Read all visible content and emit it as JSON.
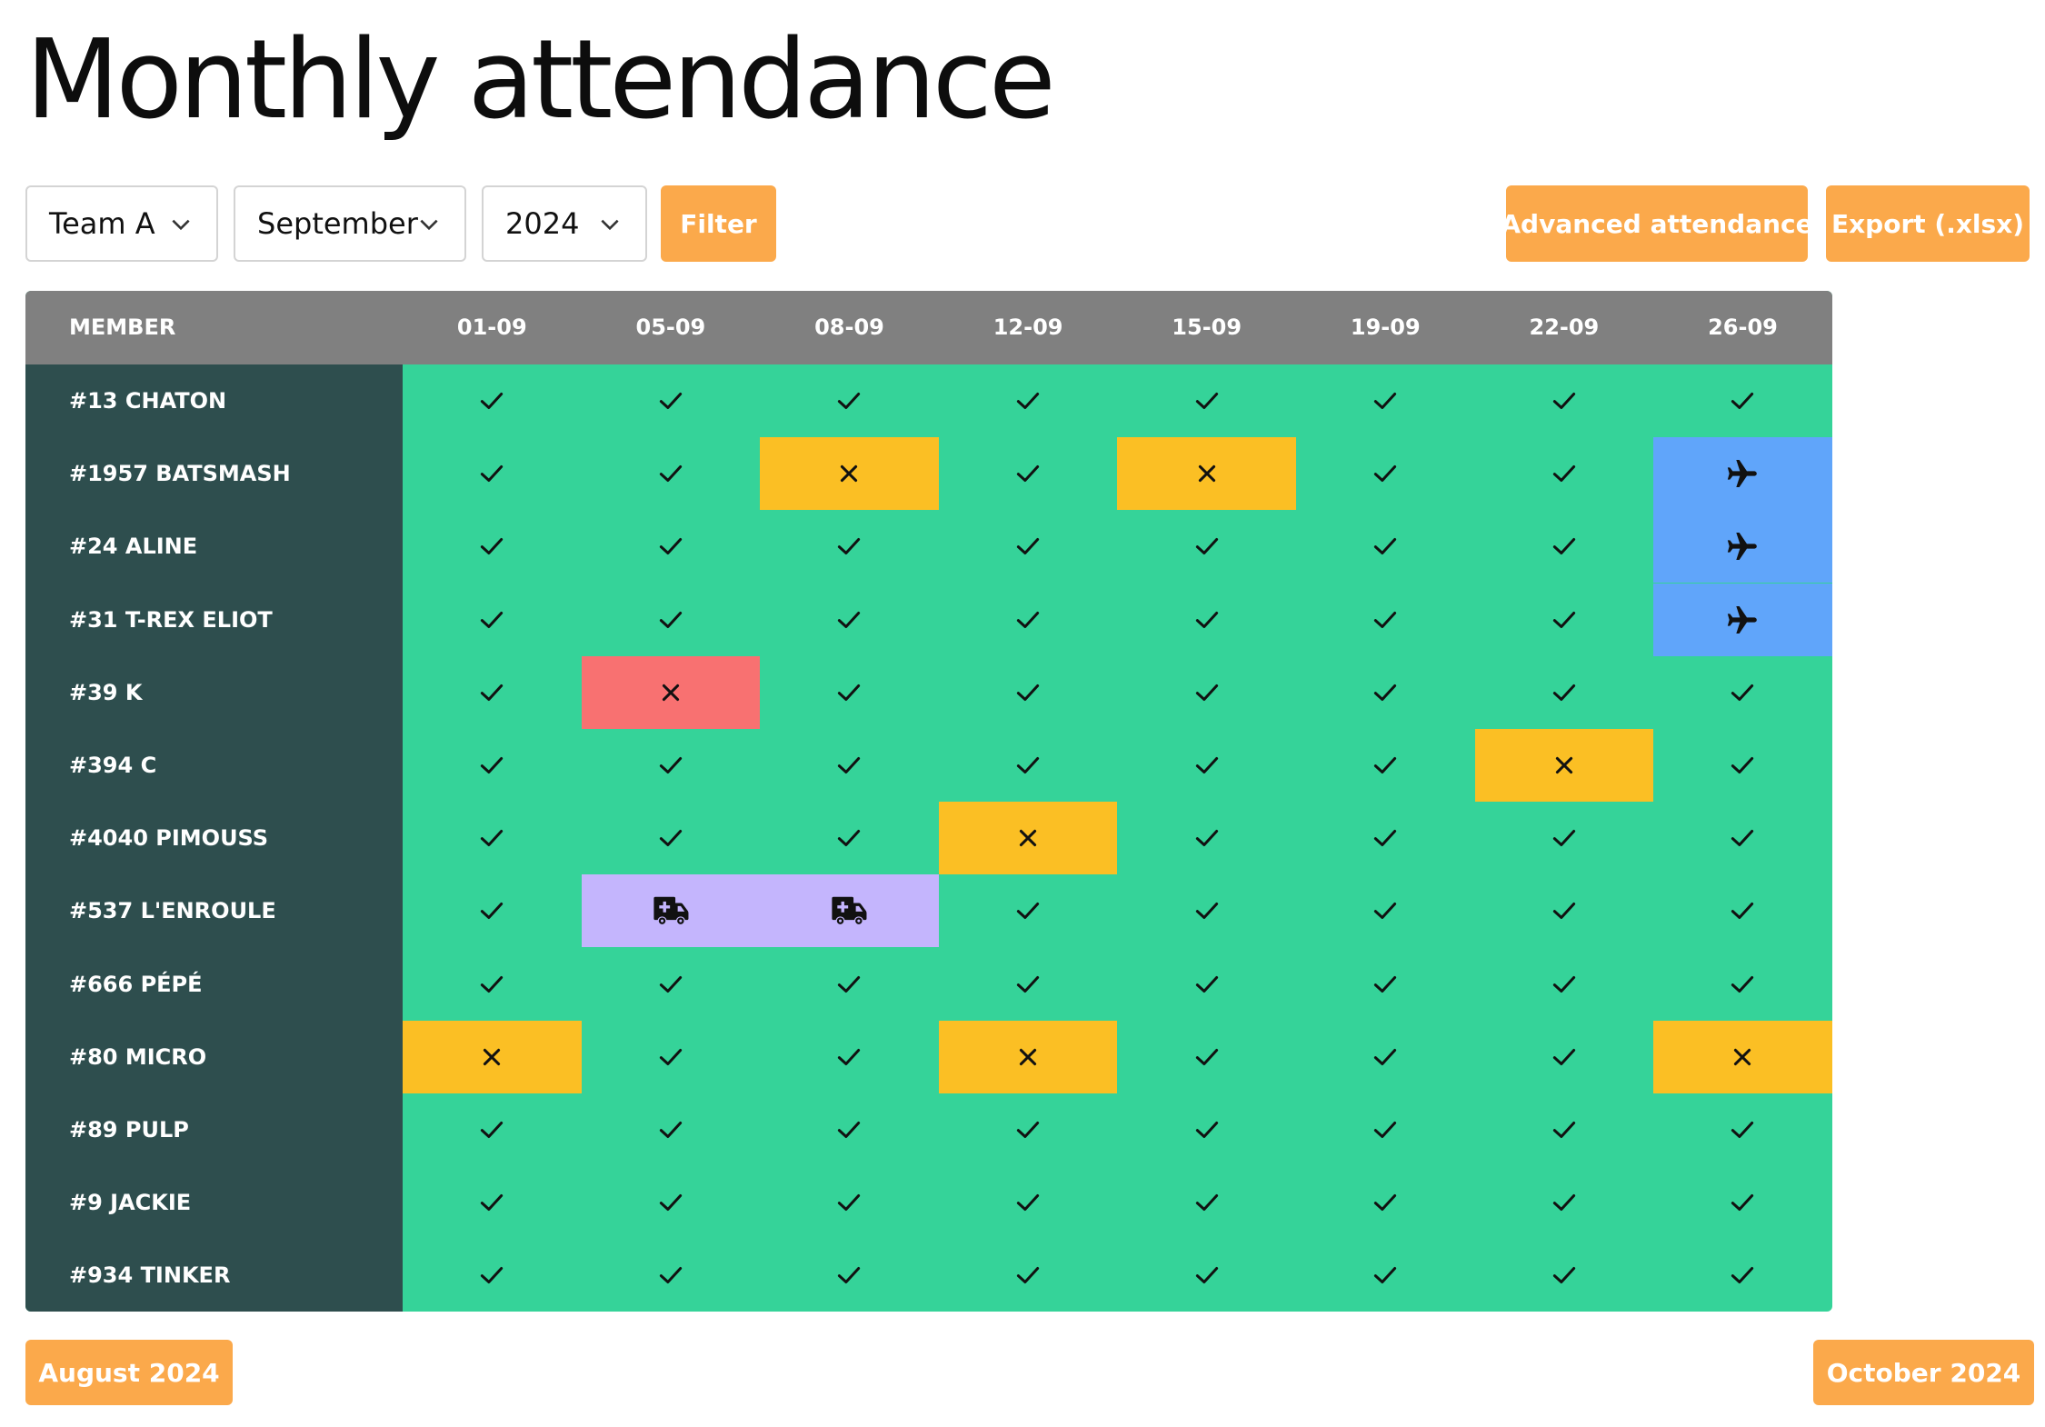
{
  "page": {
    "title": "Monthly attendance"
  },
  "filters": {
    "team": {
      "value": "Team A"
    },
    "month": {
      "value": "September"
    },
    "year": {
      "value": "2024"
    },
    "filter_label": "Filter"
  },
  "actions": {
    "advanced_label": "Advanced attendance",
    "export_label": "Export (.xlsx)"
  },
  "colors": {
    "accent": "#fba94b",
    "present": "#35d399",
    "absent": "#fbbf24",
    "unexcused": "#f87171",
    "travel": "#60a5fa",
    "medical": "#c4b5fd",
    "member_column": "#2e4e4e",
    "header": "#808080"
  },
  "table": {
    "member_header": "MEMBER",
    "dates": [
      "01-09",
      "05-09",
      "08-09",
      "12-09",
      "15-09",
      "19-09",
      "22-09",
      "26-09"
    ],
    "rows": [
      {
        "name": "#13 CHATON",
        "status": [
          "present",
          "present",
          "present",
          "present",
          "present",
          "present",
          "present",
          "present"
        ]
      },
      {
        "name": "#1957 BATSMASH",
        "status": [
          "present",
          "present",
          "absent",
          "present",
          "absent",
          "present",
          "present",
          "travel"
        ]
      },
      {
        "name": "#24 ALINE",
        "status": [
          "present",
          "present",
          "present",
          "present",
          "present",
          "present",
          "present",
          "travel"
        ]
      },
      {
        "name": "#31 T-REX ELIOT",
        "status": [
          "present",
          "present",
          "present",
          "present",
          "present",
          "present",
          "present",
          "travel"
        ]
      },
      {
        "name": "#39 K",
        "status": [
          "present",
          "unexcused",
          "present",
          "present",
          "present",
          "present",
          "present",
          "present"
        ]
      },
      {
        "name": "#394 C",
        "status": [
          "present",
          "present",
          "present",
          "present",
          "present",
          "present",
          "absent",
          "present"
        ]
      },
      {
        "name": "#4040 PIMOUSS",
        "status": [
          "present",
          "present",
          "present",
          "absent",
          "present",
          "present",
          "present",
          "present"
        ]
      },
      {
        "name": "#537 L'ENROULE",
        "status": [
          "present",
          "medical",
          "medical",
          "present",
          "present",
          "present",
          "present",
          "present"
        ]
      },
      {
        "name": "#666 PÉPÉ",
        "status": [
          "present",
          "present",
          "present",
          "present",
          "present",
          "present",
          "present",
          "present"
        ]
      },
      {
        "name": "#80 MICRO",
        "status": [
          "absent",
          "present",
          "present",
          "absent",
          "present",
          "present",
          "present",
          "absent"
        ]
      },
      {
        "name": "#89 PULP",
        "status": [
          "present",
          "present",
          "present",
          "present",
          "present",
          "present",
          "present",
          "present"
        ]
      },
      {
        "name": "#9 JACKIE",
        "status": [
          "present",
          "present",
          "present",
          "present",
          "present",
          "present",
          "present",
          "present"
        ]
      },
      {
        "name": "#934 TINKER",
        "status": [
          "present",
          "present",
          "present",
          "present",
          "present",
          "present",
          "present",
          "present"
        ]
      }
    ]
  },
  "icons": {
    "present": "check-icon",
    "absent": "cross-icon",
    "unexcused": "cross-icon",
    "travel": "airplane-icon",
    "medical": "ambulance-icon"
  },
  "navigation": {
    "prev_label": "August 2024",
    "next_label": "October 2024"
  }
}
